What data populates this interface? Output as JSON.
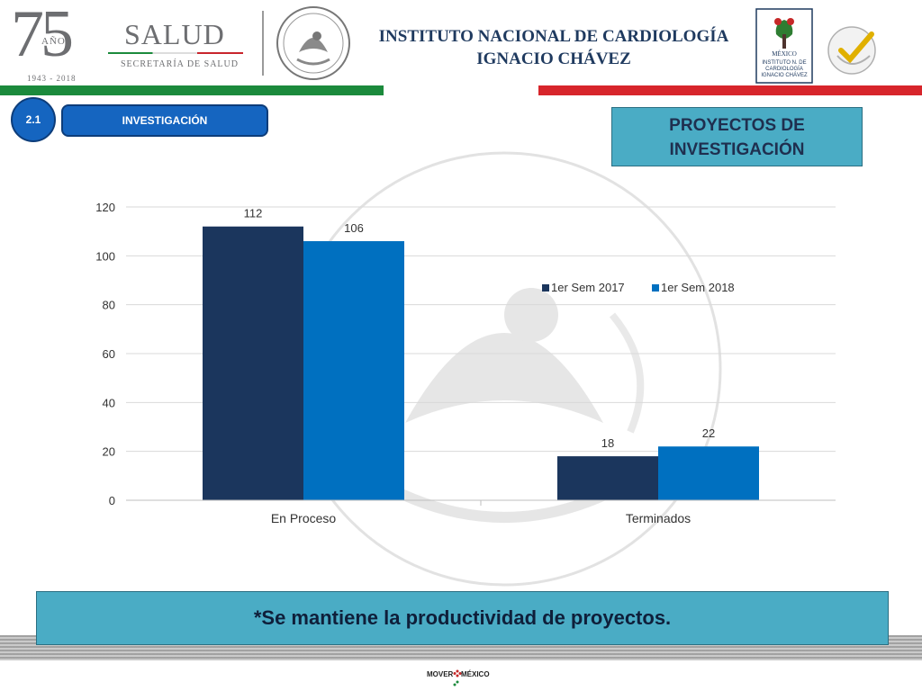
{
  "header": {
    "anniversary_number": "75",
    "anniversary_label": "AÑOS",
    "anniversary_years": "1943 - 2018",
    "salud_title": "SALUD",
    "salud_subtitle": "SECRETARÍA DE SALUD",
    "institute_line1": "INSTITUTO NACIONAL DE CARDIOLOGÍA",
    "institute_line2": "IGNACIO CHÁVEZ",
    "inc_logo_text": [
      "MÉXICO",
      "INSTITUTO N. DE",
      "CARDIOLOGÍA",
      "IGNACIO CHÁVEZ"
    ]
  },
  "section": {
    "number": "2.1",
    "name": "INVESTIGACIÓN",
    "box_title_line1": "PROYECTOS DE",
    "box_title_line2": "INVESTIGACIÓN"
  },
  "chart_data": {
    "type": "bar",
    "categories": [
      "En Proceso",
      "Terminados"
    ],
    "series": [
      {
        "name": "1er Sem 2017",
        "values": [
          112,
          18
        ],
        "color": "#1b365d"
      },
      {
        "name": "1er Sem 2018",
        "values": [
          106,
          22
        ],
        "color": "#0070c0"
      }
    ],
    "ylim": [
      0,
      120
    ],
    "yticks": [
      0,
      20,
      40,
      60,
      80,
      100,
      120
    ],
    "grid": true,
    "legend": "right",
    "data_labels": true
  },
  "note": "*Se mantiene la productividad de proyectos.",
  "footer": {
    "logo_text_left": "MOVER",
    "logo_text_right": "MÉXICO"
  }
}
